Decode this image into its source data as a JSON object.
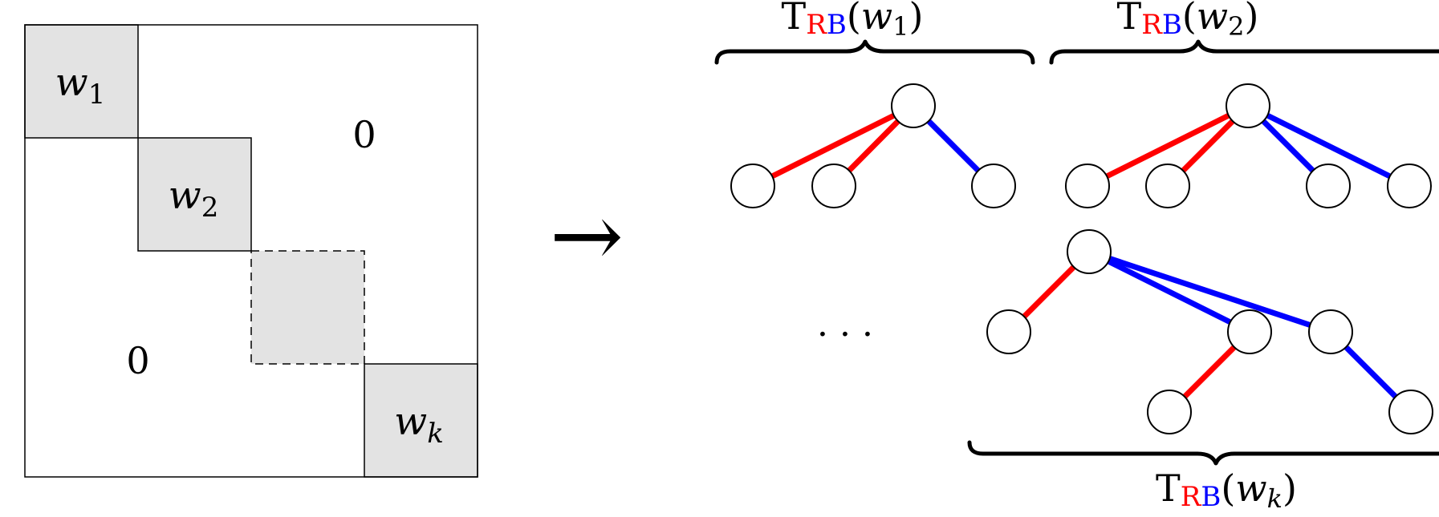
{
  "matrix": {
    "blocks": [
      {
        "name": "w",
        "sub": "1"
      },
      {
        "name": "w",
        "sub": "2"
      },
      {
        "name": "",
        "sub": ""
      },
      {
        "name": "w",
        "sub": "k"
      }
    ],
    "zero_upper": "0",
    "zero_lower": "0"
  },
  "arrow": "→",
  "ellipsis": "· · ·",
  "labels": [
    {
      "t": "T",
      "r": "R",
      "b": "B",
      "open": "(",
      "var": "w",
      "sub": "1",
      "close": ")"
    },
    {
      "t": "T",
      "r": "R",
      "b": "B",
      "open": "(",
      "var": "w",
      "sub": "2",
      "close": ")"
    },
    {
      "t": "T",
      "r": "R",
      "b": "B",
      "open": "(",
      "var": "w",
      "sub": "k",
      "close": ")"
    }
  ],
  "colors": {
    "red": "#ff0000",
    "blue": "#0000ff",
    "block_fill": "#e3e3e3",
    "stroke": "#000000"
  },
  "trees": [
    {
      "edges": [
        "red",
        "red",
        "blue"
      ]
    },
    {
      "edges": [
        "red",
        "red",
        "blue",
        "blue"
      ]
    },
    {
      "edges": [
        "red",
        "blue",
        "blue",
        "red",
        "blue"
      ]
    }
  ]
}
